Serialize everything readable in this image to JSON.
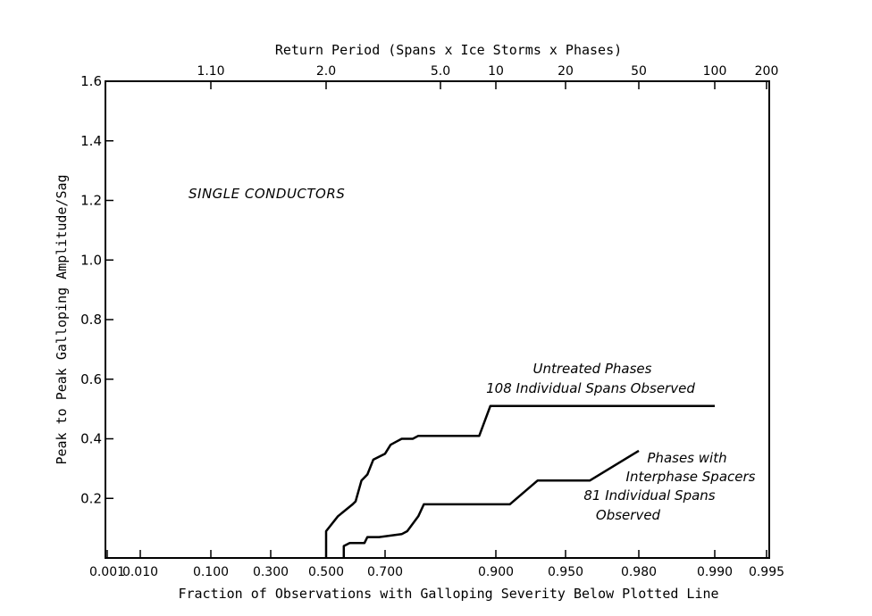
{
  "chart_data": {
    "type": "line",
    "top_axis_title": "Return Period (Spans x Ice Storms x Phases)",
    "xlabel": "Fraction of Observations with Galloping Severity Below Plotted Line",
    "ylabel": "Peak to Peak Galloping Amplitude/Sag",
    "x_scale": "probability",
    "x_ticks": [
      {
        "value": 0.001,
        "label": "0.001"
      },
      {
        "value": 0.01,
        "label": "0.010"
      },
      {
        "value": 0.1,
        "label": "0.100"
      },
      {
        "value": 0.3,
        "label": "0.300"
      },
      {
        "value": 0.5,
        "label": "0.500"
      },
      {
        "value": 0.7,
        "label": "0.700"
      },
      {
        "value": 0.9,
        "label": "0.900"
      },
      {
        "value": 0.95,
        "label": "0.950"
      },
      {
        "value": 0.98,
        "label": "0.980"
      },
      {
        "value": 0.99,
        "label": "0.990"
      },
      {
        "value": 0.995,
        "label": "0.995"
      }
    ],
    "top_ticks": [
      {
        "value": 0.1,
        "label": "1.10"
      },
      {
        "value": 0.5,
        "label": "2.0"
      },
      {
        "value": 0.8,
        "label": "5.0"
      },
      {
        "value": 0.9,
        "label": "10"
      },
      {
        "value": 0.95,
        "label": "20"
      },
      {
        "value": 0.98,
        "label": "50"
      },
      {
        "value": 0.99,
        "label": "100"
      },
      {
        "value": 0.995,
        "label": "200"
      }
    ],
    "y_ticks": [
      {
        "value": 0.2,
        "label": "0.2"
      },
      {
        "value": 0.4,
        "label": "0.4"
      },
      {
        "value": 0.6,
        "label": "0.6"
      },
      {
        "value": 0.8,
        "label": "0.8"
      },
      {
        "value": 1.0,
        "label": "1.0"
      },
      {
        "value": 1.2,
        "label": "1.2"
      },
      {
        "value": 1.4,
        "label": "1.4"
      },
      {
        "value": 1.6,
        "label": "1.6"
      }
    ],
    "ylim": [
      0,
      1.6
    ],
    "grid": false,
    "annotations": [
      {
        "text": "SINGLE CONDUCTORS"
      },
      {
        "text": "Untreated Phases"
      },
      {
        "text": "108 Individual Spans Observed"
      },
      {
        "text": "Phases with"
      },
      {
        "text": "Interphase Spacers"
      },
      {
        "text": "81 Individual Spans"
      },
      {
        "text": "Observed"
      }
    ],
    "series": [
      {
        "x": [
          0.5,
          0.5,
          0.54,
          0.59,
          0.6,
          0.62,
          0.63,
          0.64,
          0.66,
          0.7,
          0.71,
          0.72,
          0.73,
          0.75,
          0.76,
          0.77,
          0.87,
          0.89,
          0.99
        ],
        "y": [
          0.0,
          0.09,
          0.14,
          0.18,
          0.19,
          0.26,
          0.27,
          0.28,
          0.33,
          0.35,
          0.38,
          0.39,
          0.4,
          0.4,
          0.41,
          0.41,
          0.41,
          0.51,
          0.51
        ]
      },
      {
        "x": [
          0.56,
          0.56,
          0.58,
          0.63,
          0.64,
          0.68,
          0.73,
          0.74,
          0.76,
          0.77,
          0.91,
          0.93,
          0.96,
          0.98
        ],
        "y": [
          0.0,
          0.04,
          0.05,
          0.05,
          0.07,
          0.07,
          0.08,
          0.09,
          0.14,
          0.18,
          0.18,
          0.26,
          0.26,
          0.36
        ]
      }
    ]
  }
}
